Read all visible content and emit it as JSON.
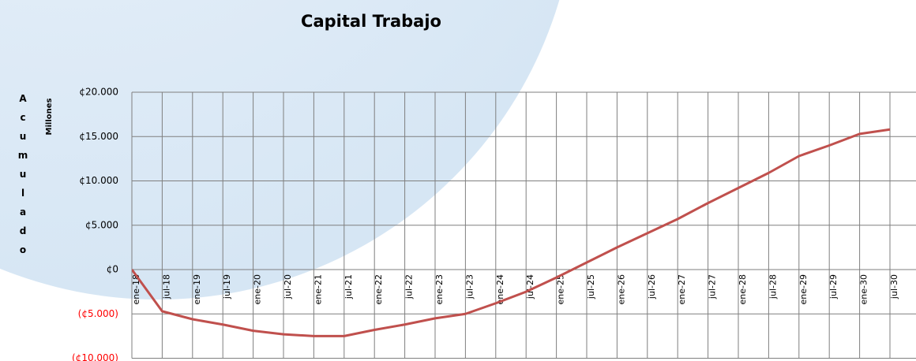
{
  "chart_data": {
    "type": "line",
    "title": "Capital Trabajo",
    "y_label": "Acumulado",
    "unit_label": "Millones",
    "categories": [
      "ene-18",
      "jul-18",
      "ene-19",
      "jul-19",
      "ene-20",
      "jul-20",
      "ene-21",
      "jul-21",
      "ene-22",
      "jul-22",
      "ene-23",
      "jul-23",
      "ene-24",
      "jul-24",
      "ene-25",
      "jul-25",
      "ene-26",
      "jul-26",
      "ene-27",
      "jul-27",
      "ene-28",
      "jul-28",
      "ene-29",
      "jul-29",
      "ene-30",
      "jul-30"
    ],
    "series": [
      {
        "name": "Capital Trabajo",
        "color": "#c0504d",
        "values": [
          0,
          -4700,
          -5600,
          -6200,
          -6900,
          -7300,
          -7500,
          -7500,
          -6800,
          -6200,
          -5500,
          -5000,
          -3800,
          -2500,
          -900,
          800,
          2500,
          4100,
          5700,
          7500,
          9200,
          10900,
          12800,
          14000,
          15300,
          15800
        ]
      }
    ],
    "ylim": [
      -10000,
      20000
    ],
    "yticks": [
      {
        "value": 20000,
        "label": "¢20.000"
      },
      {
        "value": 15000,
        "label": "¢15.000"
      },
      {
        "value": 10000,
        "label": "¢10.000"
      },
      {
        "value": 5000,
        "label": "¢5.000"
      },
      {
        "value": 0,
        "label": "¢0"
      },
      {
        "value": -5000,
        "label": "(¢5.000)"
      },
      {
        "value": -10000,
        "label": "(¢10.000)"
      }
    ],
    "negative_label_color": "#ff0000",
    "grid": true
  }
}
